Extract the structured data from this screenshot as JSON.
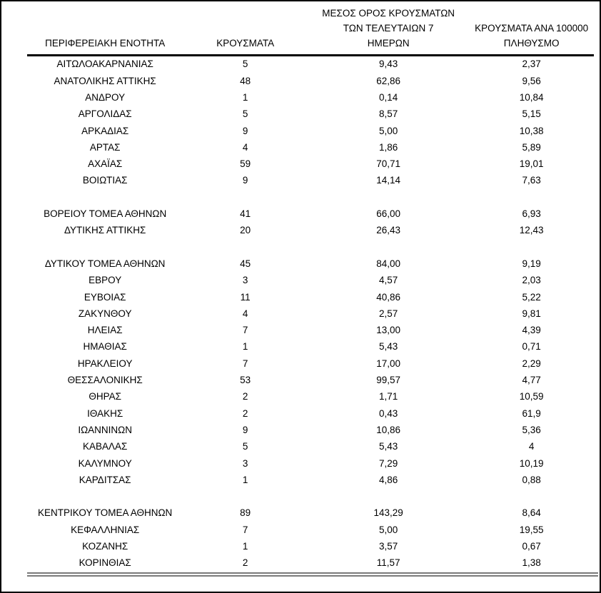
{
  "page": {
    "background_color": "#ffffff",
    "frame_color": "#000000",
    "header_rule_color": "#000000",
    "bottom_rule_color": "#7a7a7a"
  },
  "table": {
    "header": {
      "col1": "ΠΕΡΙΦΕΡΕΙΑΚΗ ΕΝΟΤΗΤΑ",
      "col2": "ΚΡΟΥΣΜΑΤΑ",
      "col3": "ΜΕΣΟΣ ΟΡΟΣ ΚΡΟΥΣΜΑΤΩΝ\nΤΩΝ ΤΕΛΕΥΤΑΙΩΝ 7\nΗΜΕΡΩΝ",
      "col4": "ΚΡΟΥΣΜΑΤΑ ΑΝΑ 100000\nΠΛΗΘΥΣΜΟ"
    },
    "separator_before_rows": [
      8,
      10,
      24
    ]
  },
  "chart_data": {
    "type": "table",
    "columns": [
      "ΠΕΡΙΦΕΡΕΙΑΚΗ ΕΝΟΤΗΤΑ",
      "ΚΡΟΥΣΜΑΤΑ",
      "ΜΕΣΟΣ ΟΡΟΣ ΚΡΟΥΣΜΑΤΩΝ ΤΩΝ ΤΕΛΕΥΤΑΙΩΝ 7 ΗΜΕΡΩΝ",
      "ΚΡΟΥΣΜΑΤΑ ΑΝΑ 100000 ΠΛΗΘΥΣΜΟ"
    ],
    "rows": [
      [
        "ΑΙΤΩΛΟΑΚΑΡΝΑΝΙΑΣ",
        "5",
        "9,43",
        "2,37"
      ],
      [
        "ΑΝΑΤΟΛΙΚΗΣ ΑΤΤΙΚΗΣ",
        "48",
        "62,86",
        "9,56"
      ],
      [
        "ΑΝΔΡΟΥ",
        "1",
        "0,14",
        "10,84"
      ],
      [
        "ΑΡΓΟΛΙΔΑΣ",
        "5",
        "8,57",
        "5,15"
      ],
      [
        "ΑΡΚΑΔΙΑΣ",
        "9",
        "5,00",
        "10,38"
      ],
      [
        "ΑΡΤΑΣ",
        "4",
        "1,86",
        "5,89"
      ],
      [
        "ΑΧΑΪΑΣ",
        "59",
        "70,71",
        "19,01"
      ],
      [
        "ΒΟΙΩΤΙΑΣ",
        "9",
        "14,14",
        "7,63"
      ],
      [
        "ΒΟΡΕΙΟΥ ΤΟΜΕΑ ΑΘΗΝΩΝ",
        "41",
        "66,00",
        "6,93"
      ],
      [
        "ΔΥΤΙΚΗΣ ΑΤΤΙΚΗΣ",
        "20",
        "26,43",
        "12,43"
      ],
      [
        "ΔΥΤΙΚΟΥ ΤΟΜΕΑ ΑΘΗΝΩΝ",
        "45",
        "84,00",
        "9,19"
      ],
      [
        "ΕΒΡΟΥ",
        "3",
        "4,57",
        "2,03"
      ],
      [
        "ΕΥΒΟΙΑΣ",
        "11",
        "40,86",
        "5,22"
      ],
      [
        "ΖΑΚΥΝΘΟΥ",
        "4",
        "2,57",
        "9,81"
      ],
      [
        "ΗΛΕΙΑΣ",
        "7",
        "13,00",
        "4,39"
      ],
      [
        "ΗΜΑΘΙΑΣ",
        "1",
        "5,43",
        "0,71"
      ],
      [
        "ΗΡΑΚΛΕΙΟΥ",
        "7",
        "17,00",
        "2,29"
      ],
      [
        "ΘΕΣΣΑΛΟΝΙΚΗΣ",
        "53",
        "99,57",
        "4,77"
      ],
      [
        "ΘΗΡΑΣ",
        "2",
        "1,71",
        "10,59"
      ],
      [
        "ΙΘΑΚΗΣ",
        "2",
        "0,43",
        "61,9"
      ],
      [
        "ΙΩΑΝΝΙΝΩΝ",
        "9",
        "10,86",
        "5,36"
      ],
      [
        "ΚΑΒΑΛΑΣ",
        "5",
        "5,43",
        "4"
      ],
      [
        "ΚΑΛΥΜΝΟΥ",
        "3",
        "7,29",
        "10,19"
      ],
      [
        "ΚΑΡΔΙΤΣΑΣ",
        "1",
        "4,86",
        "0,88"
      ],
      [
        "ΚΕΝΤΡΙΚΟΥ ΤΟΜΕΑ ΑΘΗΝΩΝ",
        "89",
        "143,29",
        "8,64"
      ],
      [
        "ΚΕΦΑΛΛΗΝΙΑΣ",
        "7",
        "5,00",
        "19,55"
      ],
      [
        "ΚΟΖΑΝΗΣ",
        "1",
        "3,57",
        "0,67"
      ],
      [
        "ΚΟΡΙΝΘΙΑΣ",
        "2",
        "11,57",
        "1,38"
      ]
    ]
  }
}
